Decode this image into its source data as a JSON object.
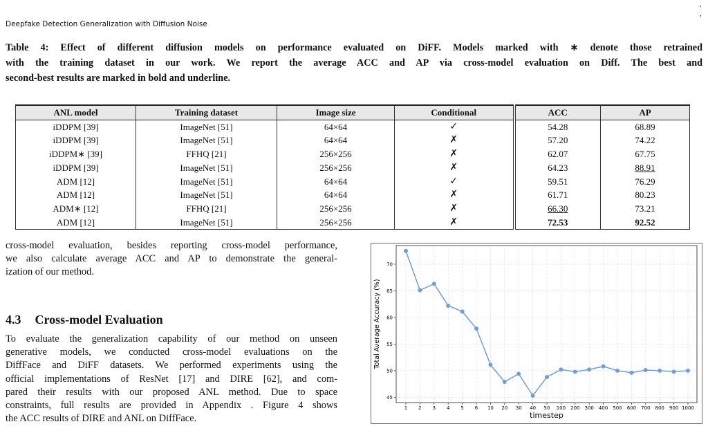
{
  "header": {
    "running_title": "Deepfake Detection Generalization with Diffusion Noise",
    "corner_marks": [
      ",",
      ","
    ]
  },
  "caption": {
    "lines": [
      "Table 4: Effect of different diffusion models on performance evaluated on DiFF. Models marked with ∗ denote those retrained",
      "with the training dataset in our work. We report the average ACC and AP via cross-model evaluation on Diff. The best and",
      "second-best results are marked in bold and underline."
    ]
  },
  "table": {
    "columns": [
      "ANL model",
      "Training dataset",
      "Image size",
      "Conditional",
      "ACC",
      "AP"
    ],
    "rows": [
      [
        "iDDPM [39]",
        "ImageNet [51]",
        "64×64",
        "✓",
        "54.28",
        "68.89"
      ],
      [
        "iDDPM [39]",
        "ImageNet [51]",
        "64×64",
        "✗",
        "57.20",
        "74.22"
      ],
      [
        "iDDPM∗ [39]",
        "FFHQ [21]",
        "256×256",
        "✗",
        "62.07",
        "67.75"
      ],
      [
        "iDDPM [39]",
        "ImageNet [51]",
        "256×256",
        "✗",
        "64.23",
        "88.91"
      ],
      [
        "ADM [12]",
        "ImageNet [51]",
        "64×64",
        "✓",
        "59.51",
        "76.29"
      ],
      [
        "ADM [12]",
        "ImageNet [51]",
        "64×64",
        "✗",
        "61.71",
        "80.23"
      ],
      [
        "ADM∗ [12]",
        "FFHQ [21]",
        "256×256",
        "✗",
        "66.30",
        "73.21"
      ],
      [
        "ADM [12]",
        "ImageNet [51]",
        "256×256",
        "✗",
        "72.53",
        "92.52"
      ]
    ],
    "bold_cells": [
      [
        7,
        4
      ],
      [
        7,
        5
      ]
    ],
    "underline_cells": [
      [
        6,
        4
      ],
      [
        3,
        5
      ]
    ]
  },
  "body": {
    "paragraph_1": [
      "cross-model evaluation, besides reporting cross-model performance,",
      "we also calculate average ACC and AP to demonstrate the general-",
      "ization of our method."
    ],
    "section_number": "4.3",
    "section_title": "Cross-model Evaluation",
    "paragraph_2": [
      "To evaluate the generalization capability of our method on unseen",
      "generative models, we conducted cross-model evaluations on the",
      "DiffFace and DiFF datasets. We performed experiments using the",
      "official implementations of ResNet [17] and DIRE [62], and com-",
      "pared their results with our proposed ANL method. Due to space",
      "constraints, full results are provided in Appendix . Figure 4 shows",
      "the ACC results of DIRE and ANL on DiffFace."
    ]
  },
  "chart_data": {
    "type": "line",
    "x_label": "timestep",
    "y_label": "Total Average Accuracy (%)",
    "categories": [
      "1",
      "2",
      "3",
      "4",
      "5",
      "6",
      "10",
      "20",
      "30",
      "40",
      "50",
      "100",
      "200",
      "300",
      "400",
      "500",
      "600",
      "700",
      "800",
      "900",
      "1000"
    ],
    "series": [
      {
        "color": "#6f9fd6",
        "values": [
          72.5,
          65.1,
          66.3,
          62.2,
          61.1,
          57.9,
          51.1,
          47.9,
          49.4,
          45.3,
          48.8,
          50.2,
          49.8,
          50.2,
          50.8,
          50.0,
          49.6,
          50.1,
          50.0,
          49.8,
          50.0
        ]
      }
    ],
    "ylim": [
      44,
      73.5
    ],
    "yticks": [
      45,
      50,
      55,
      60,
      65,
      70
    ],
    "grid": true
  }
}
